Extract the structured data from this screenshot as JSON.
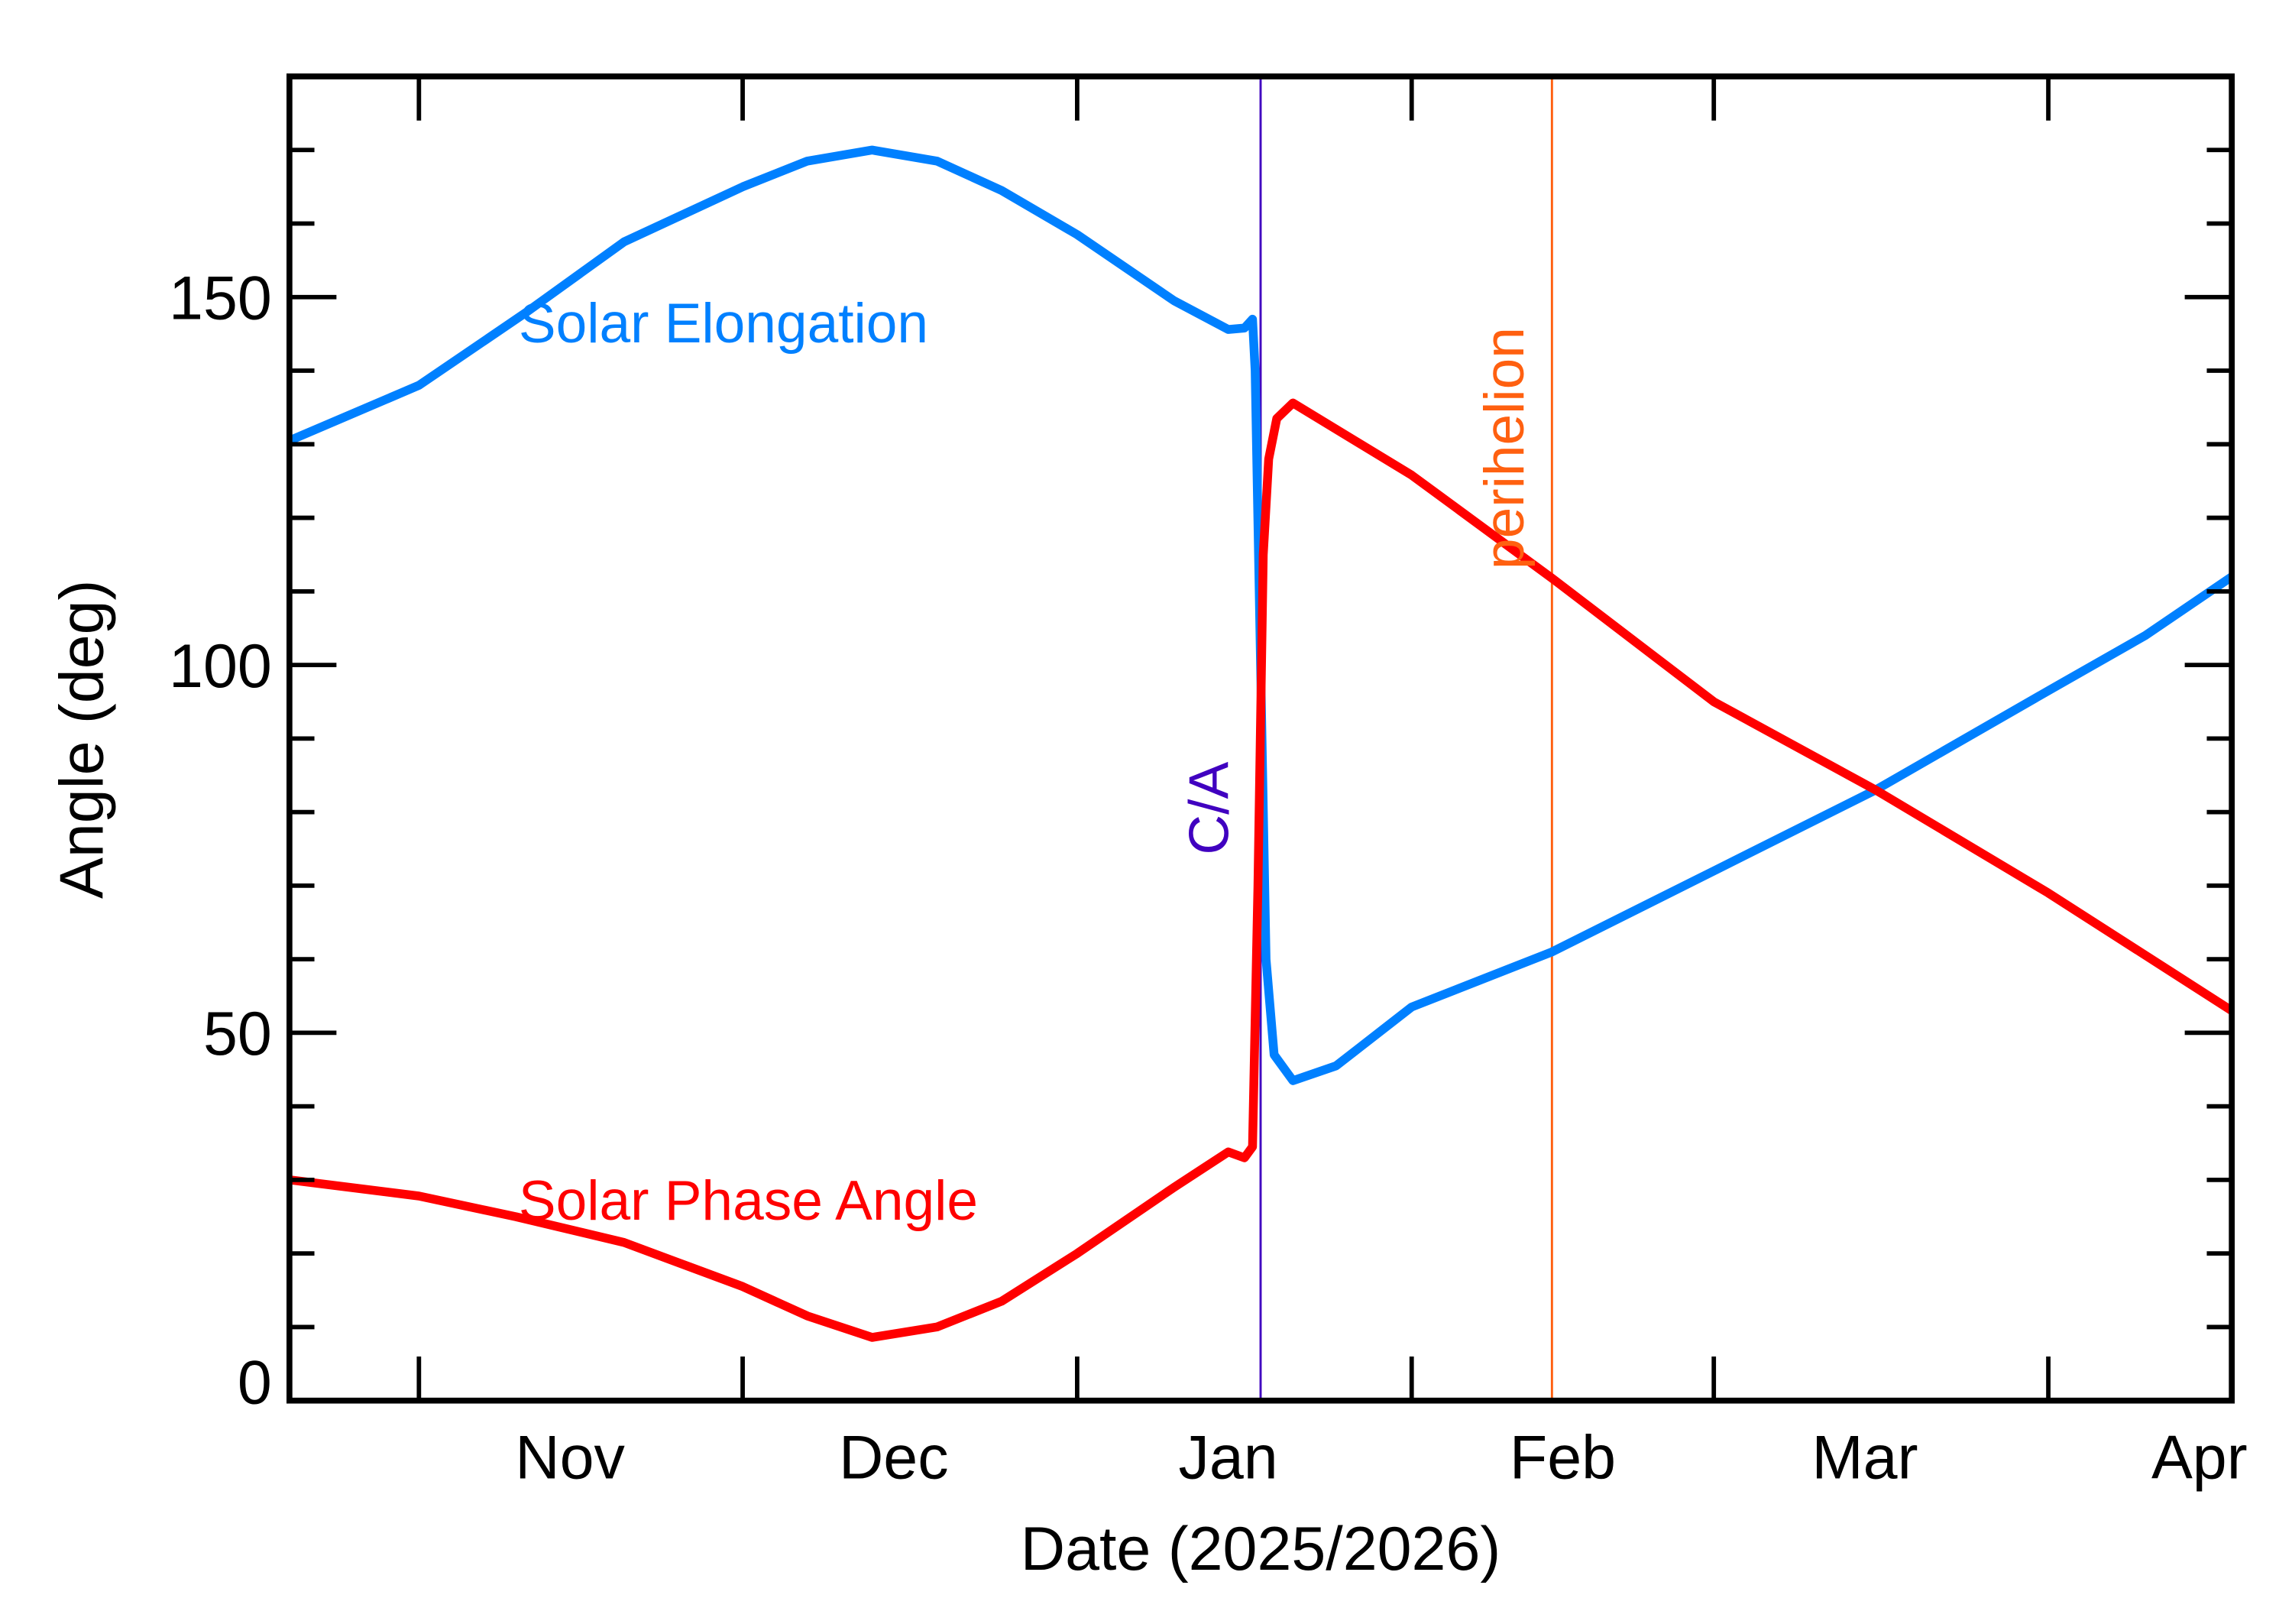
{
  "chart_data": {
    "type": "line",
    "xlabel": "Date (2025/2026)",
    "ylabel": "Angle (deg)",
    "xlim": [
      "2025-10-20",
      "2026-04-18"
    ],
    "ylim": [
      0,
      180
    ],
    "grid": false,
    "x_tick_labels": [
      "Nov",
      "Dec",
      "Jan",
      "Feb",
      "Mar",
      "Apr"
    ],
    "x_tick_dates": [
      "2025-11-01",
      "2025-12-01",
      "2026-01-01",
      "2026-02-01",
      "2026-03-01",
      "2026-04-01"
    ],
    "y_major_ticks": [
      0,
      50,
      100,
      150
    ],
    "y_tick_labels": [
      "0",
      "50",
      "100",
      "150"
    ],
    "y_minor_step": 10,
    "series": [
      {
        "name": "Solar Elongation",
        "color": "#0080ff",
        "points": [
          [
            "2025-10-20",
            130.5
          ],
          [
            "2025-11-01",
            138
          ],
          [
            "2025-11-11",
            148
          ],
          [
            "2025-11-20",
            157.5
          ],
          [
            "2025-12-01",
            165
          ],
          [
            "2025-12-07",
            168.5
          ],
          [
            "2025-12-13",
            170
          ],
          [
            "2025-12-19",
            168.5
          ],
          [
            "2025-12-25",
            164.5
          ],
          [
            "2026-01-01",
            158.5
          ],
          [
            "2026-01-10",
            149.5
          ],
          [
            "2026-01-15",
            145.6
          ],
          [
            "2026-01-16T12:00",
            145.8
          ],
          [
            "2026-01-17T06:00",
            147
          ],
          [
            "2026-01-17T12:00",
            140
          ],
          [
            "2026-01-18T00:00",
            100
          ],
          [
            "2026-01-18T12:00",
            60
          ],
          [
            "2026-01-19T06:00",
            47
          ],
          [
            "2026-01-21",
            43.5
          ],
          [
            "2026-01-25",
            45.5
          ],
          [
            "2026-02-01",
            53.5
          ],
          [
            "2026-02-14",
            61
          ],
          [
            "2026-03-01",
            72
          ],
          [
            "2026-03-16",
            83
          ],
          [
            "2026-04-01",
            96.5
          ],
          [
            "2026-04-10",
            104
          ],
          [
            "2026-04-18",
            112
          ]
        ]
      },
      {
        "name": "Solar Phase Angle",
        "color": "#ff0000",
        "points": [
          [
            "2025-10-20",
            30
          ],
          [
            "2025-11-01",
            27.8
          ],
          [
            "2025-11-10",
            25
          ],
          [
            "2025-11-20",
            21.5
          ],
          [
            "2025-12-01",
            15.5
          ],
          [
            "2025-12-07",
            11.5
          ],
          [
            "2025-12-13",
            8.6
          ],
          [
            "2025-12-19",
            10
          ],
          [
            "2025-12-25",
            13.5
          ],
          [
            "2026-01-01",
            20
          ],
          [
            "2026-01-10",
            29
          ],
          [
            "2026-01-15",
            33.8
          ],
          [
            "2026-01-16T12:00",
            33
          ],
          [
            "2026-01-17T06:00",
            34.5
          ],
          [
            "2026-01-17T18:00",
            70
          ],
          [
            "2026-01-18T06:00",
            115
          ],
          [
            "2026-01-18T18:00",
            128
          ],
          [
            "2026-01-19T12:00",
            133.5
          ],
          [
            "2026-01-21",
            135.6
          ],
          [
            "2026-02-01",
            125.8
          ],
          [
            "2026-02-14",
            111.8
          ],
          [
            "2026-03-01",
            95
          ],
          [
            "2026-03-16",
            83
          ],
          [
            "2026-04-01",
            69
          ],
          [
            "2026-04-18",
            53
          ]
        ]
      }
    ],
    "annotations": [
      {
        "label": "C/A",
        "date": "2026-01-18",
        "color": "#4000c0"
      },
      {
        "label": "perihelion",
        "date": "2026-02-14",
        "color": "#ff6010"
      }
    ]
  }
}
